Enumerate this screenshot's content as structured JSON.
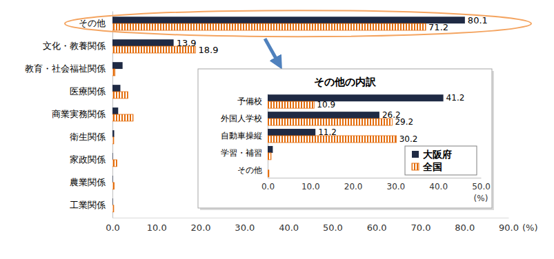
{
  "chart_data": [
    {
      "type": "bar",
      "orientation": "horizontal",
      "categories": [
        "その他",
        "文化・教養関係",
        "教育・社会福祉関係",
        "医療関係",
        "商業実務関係",
        "衛生関係",
        "家政関係",
        "農業関係",
        "工業関係"
      ],
      "series": [
        {
          "name": "大阪府",
          "color": "#1f2a44",
          "values": [
            80.1,
            13.9,
            2.3,
            1.8,
            1.3,
            0.4,
            0.1,
            0.1,
            0.1
          ],
          "value_labels": [
            "80.1",
            "13.9",
            null,
            null,
            null,
            null,
            null,
            null,
            null
          ]
        },
        {
          "name": "全国",
          "color": "#e46c0a",
          "values": [
            71.2,
            18.9,
            0.6,
            3.5,
            4.7,
            0.3,
            1.0,
            0.4,
            0.3
          ],
          "value_labels": [
            "71.2",
            "18.9",
            null,
            null,
            null,
            null,
            null,
            null,
            null
          ]
        }
      ],
      "x_label": "(%)",
      "xlim": [
        0,
        90
      ],
      "xticks": [
        {
          "value": 0,
          "label": "0.0"
        },
        {
          "value": 10,
          "label": "10.0"
        },
        {
          "value": 20,
          "label": "20.0"
        },
        {
          "value": 30,
          "label": "30.0"
        },
        {
          "value": 40,
          "label": "40.0"
        },
        {
          "value": 50,
          "label": "50.0"
        },
        {
          "value": 60,
          "label": "60.0"
        },
        {
          "value": 70,
          "label": "70.0"
        },
        {
          "value": 80,
          "label": "80.0"
        },
        {
          "value": 90,
          "label": "90.0"
        }
      ],
      "data_labels": true,
      "legend": "none",
      "grid": false
    },
    {
      "type": "bar",
      "orientation": "horizontal",
      "title": "その他の内訳",
      "categories": [
        "予備校",
        "外国人学校",
        "自動車操縦",
        "学習・補習",
        "その他"
      ],
      "series": [
        {
          "name": "大阪府",
          "color": "#1f2a44",
          "values": [
            41.2,
            26.2,
            11.2,
            1.2,
            0.0
          ],
          "value_labels": [
            "41.2",
            "26.2",
            "11.2",
            null,
            null
          ]
        },
        {
          "name": "全国",
          "color": "#e46c0a",
          "values": [
            10.9,
            29.2,
            30.2,
            0.8,
            0.3
          ],
          "value_labels": [
            "10.9",
            "29.2",
            "30.2",
            null,
            null
          ]
        }
      ],
      "x_label": "(%)",
      "xlim": [
        0,
        50
      ],
      "xticks": [
        {
          "value": 0,
          "label": "0.0"
        },
        {
          "value": 10,
          "label": "10.0"
        },
        {
          "value": 20,
          "label": "20.0"
        },
        {
          "value": 30,
          "label": "30.0"
        },
        {
          "value": 40,
          "label": "40.0"
        },
        {
          "value": 50,
          "label": "50.0"
        }
      ],
      "data_labels": true,
      "legend": "lower right",
      "grid": false
    }
  ]
}
